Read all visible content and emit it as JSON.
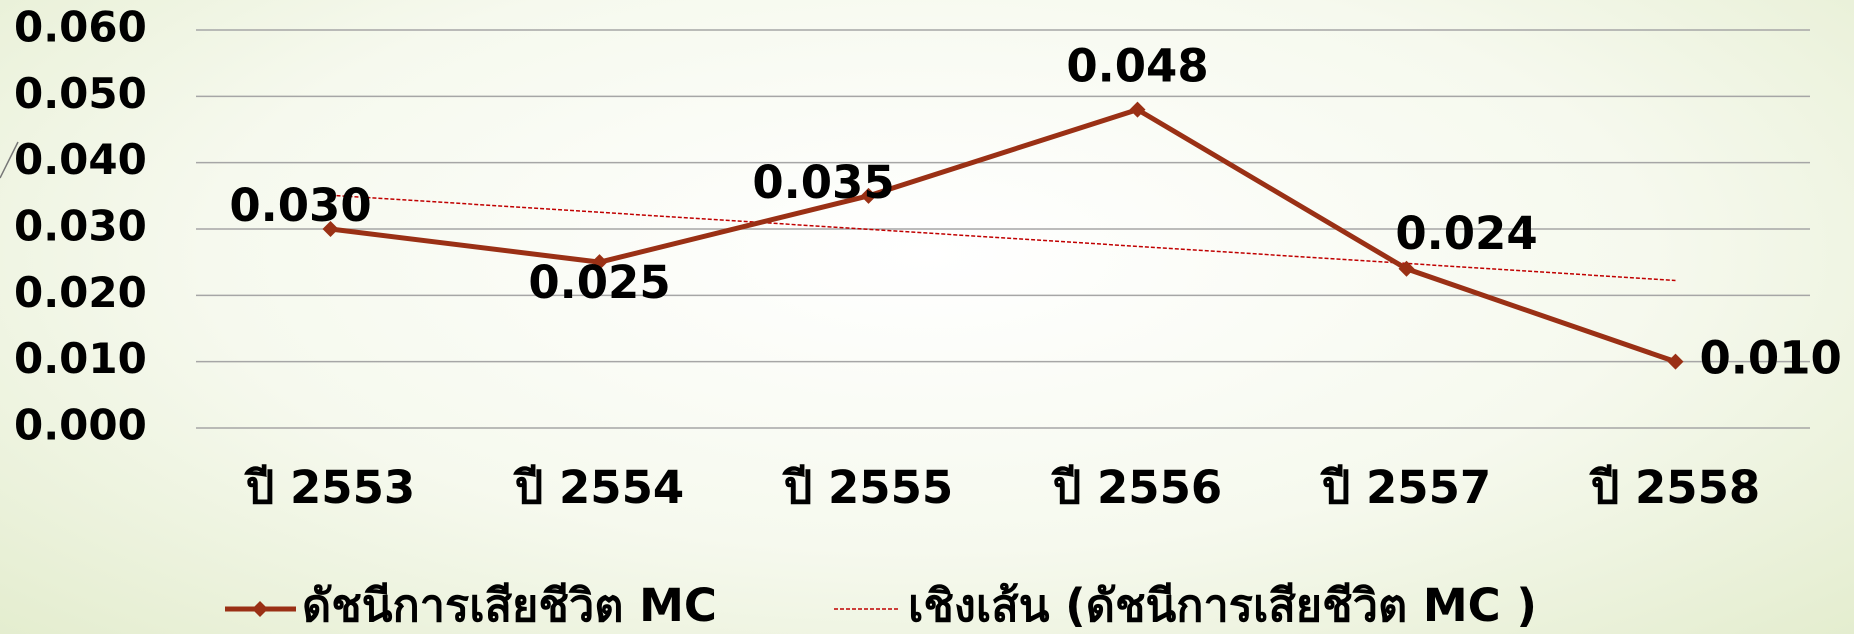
{
  "chart_data": {
    "type": "line",
    "categories": [
      "ปี 2553",
      "ปี 2554",
      "ปี 2555",
      "ปี 2556",
      "ปี 2557",
      "ปี 2558"
    ],
    "series": [
      {
        "name": "ดัชนีการเสียชีวิต MC",
        "color": "#9a3015",
        "values": [
          0.03,
          0.025,
          0.035,
          0.048,
          0.024,
          0.01
        ],
        "value_labels": [
          "0.030",
          "0.025",
          "0.035",
          "0.048",
          "0.024",
          "0.010"
        ]
      }
    ],
    "trendline": {
      "name": "เชิงเส้น (ดัชนีการเสียชีวิต MC )",
      "color": "#c00000"
    },
    "ylim": [
      0,
      0.06
    ],
    "yticks": [
      {
        "value": 0,
        "label": "0.000"
      },
      {
        "value": 0.01,
        "label": "0.010"
      },
      {
        "value": 0.02,
        "label": "0.020"
      },
      {
        "value": 0.03,
        "label": "0.030"
      },
      {
        "value": 0.04,
        "label": "0.040"
      },
      {
        "value": 0.05,
        "label": "0.050"
      },
      {
        "value": 0.06,
        "label": "0.060"
      }
    ],
    "grid": true
  }
}
